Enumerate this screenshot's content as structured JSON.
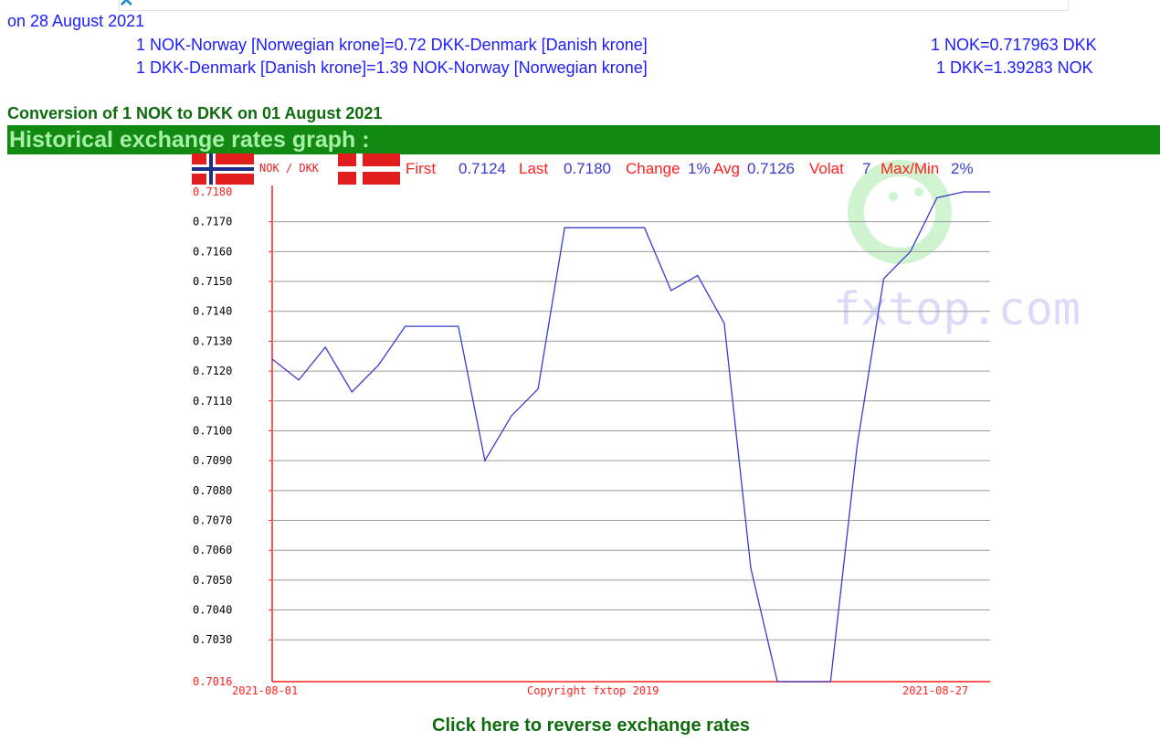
{
  "page": {
    "date_line": "on 28 August 2021",
    "conversions": [
      {
        "label": "1 NOK-Norway [Norwegian krone]=0.72 DKK-Denmark [Danish krone]",
        "value": "1 NOK=0.717963 DKK"
      },
      {
        "label": "1 DKK-Denmark [Danish krone]=1.39 NOK-Norway [Norwegian krone]",
        "value": "1 DKK=1.39283 NOK"
      }
    ],
    "conversion_title": "Conversion of 1 NOK to DKK on 01 August 2021",
    "historical_title": "Historical exchange rates graph :",
    "reverse_link": "Click here to reverse exchange rates",
    "colors": {
      "blue": "#1c1cff",
      "green_bar": "#128a12",
      "red": "#ff2020",
      "line": "#3a3acc"
    }
  },
  "chart_header": {
    "pair": "NOK / DKK",
    "first_label": "First",
    "first_value": "0.7124",
    "last_label": "Last",
    "last_value": "0.7180",
    "change_label": "Change",
    "change_value": "1%",
    "avg_label": "Avg",
    "avg_value": "0.7126",
    "volat_label": "Volat",
    "volat_value": "7",
    "maxmin_label": "Max/Min",
    "maxmin_value": "2%",
    "copyright": "Copyright fxtop 2019",
    "watermark": "fxtop.com"
  },
  "chart_data": {
    "type": "line",
    "title": "",
    "xlabel": "",
    "ylabel": "",
    "x_start_label": "2021-08-01",
    "x_end_label": "2021-08-27",
    "ylim": [
      0.7016,
      0.718
    ],
    "yticks": [
      "0.7180",
      "0.7170",
      "0.7160",
      "0.7150",
      "0.7140",
      "0.7130",
      "0.7120",
      "0.7110",
      "0.7100",
      "0.7090",
      "0.7080",
      "0.7070",
      "0.7060",
      "0.7050",
      "0.7040",
      "0.7030",
      "0.7016"
    ],
    "x": [
      "2021-08-01",
      "2021-08-02",
      "2021-08-03",
      "2021-08-04",
      "2021-08-05",
      "2021-08-06",
      "2021-08-07",
      "2021-08-08",
      "2021-08-09",
      "2021-08-10",
      "2021-08-11",
      "2021-08-12",
      "2021-08-13",
      "2021-08-14",
      "2021-08-15",
      "2021-08-16",
      "2021-08-17",
      "2021-08-18",
      "2021-08-19",
      "2021-08-20",
      "2021-08-21",
      "2021-08-22",
      "2021-08-23",
      "2021-08-24",
      "2021-08-25",
      "2021-08-26",
      "2021-08-27",
      "2021-08-28"
    ],
    "series": [
      {
        "values": [
          0.7124,
          0.7117,
          0.7128,
          0.7113,
          0.7122,
          0.7135,
          0.7135,
          0.7135,
          0.709,
          0.7105,
          0.7114,
          0.7168,
          0.7168,
          0.7168,
          0.7168,
          0.7147,
          0.7152,
          0.7136,
          0.7054,
          0.7016,
          0.7016,
          0.7016,
          0.7095,
          0.7151,
          0.716,
          0.7178,
          0.718,
          0.718
        ]
      }
    ]
  }
}
